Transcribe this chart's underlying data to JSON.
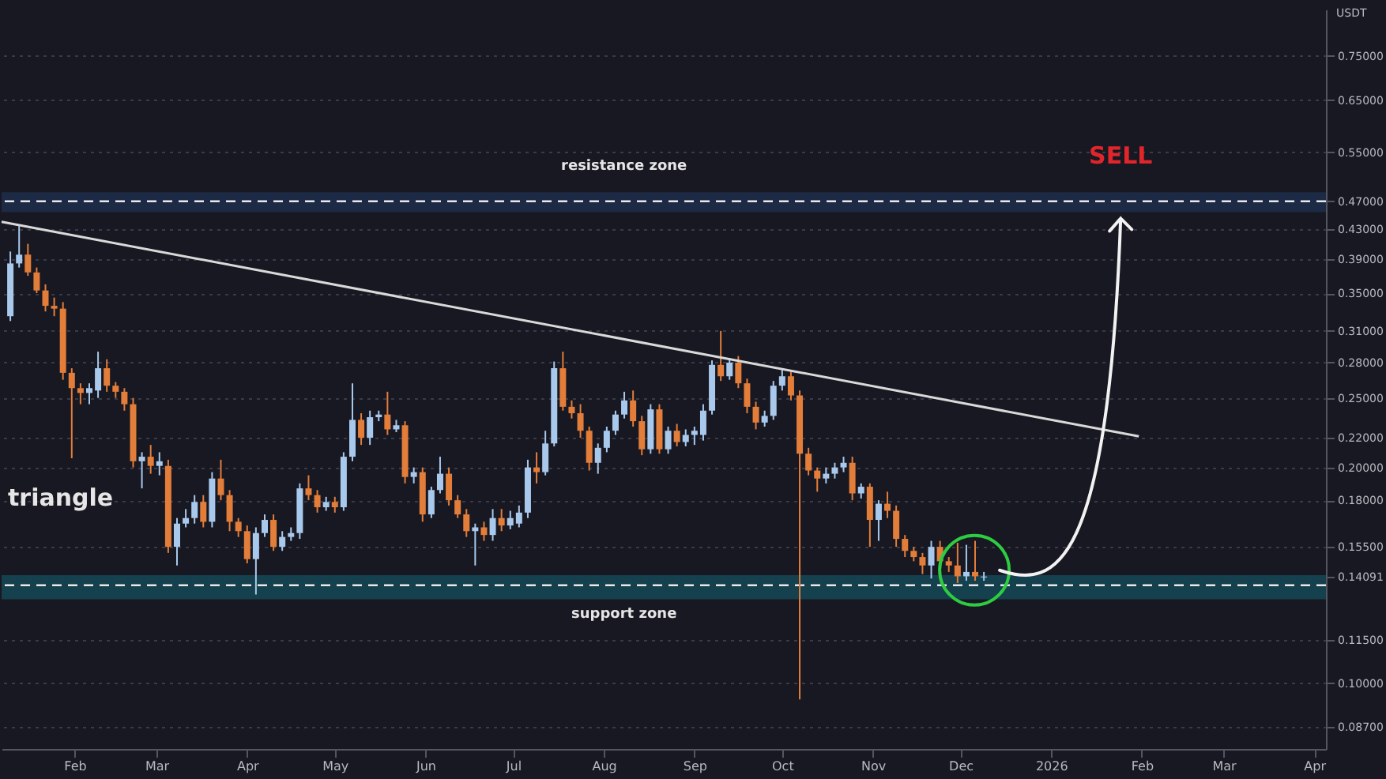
{
  "chart_data": {
    "type": "candlestick",
    "ylabel": "USDT",
    "log": "y",
    "grid": "y",
    "xlim": [
      "2025-01-07",
      "2026-04-05"
    ],
    "xticks": [
      {
        "value": "2025-02-01",
        "label": "Feb"
      },
      {
        "value": "2025-03-01",
        "label": "Mar"
      },
      {
        "value": "2025-04-01",
        "label": "Apr"
      },
      {
        "value": "2025-05-01",
        "label": "May"
      },
      {
        "value": "2025-06-01",
        "label": "Jun"
      },
      {
        "value": "2025-07-01",
        "label": "Jul"
      },
      {
        "value": "2025-08-01",
        "label": "Aug"
      },
      {
        "value": "2025-09-01",
        "label": "Sep"
      },
      {
        "value": "2025-10-01",
        "label": "Oct"
      },
      {
        "value": "2025-11-01",
        "label": "Nov"
      },
      {
        "value": "2025-12-01",
        "label": "Dec"
      },
      {
        "value": "2026-01-01",
        "label": "2026"
      },
      {
        "value": "2026-02-01",
        "label": "Feb"
      },
      {
        "value": "2026-03-01",
        "label": "Mar"
      },
      {
        "value": "2026-04-01",
        "label": "Apr"
      }
    ],
    "ylim": [
      0.081,
      0.87
    ],
    "yticks": [
      {
        "value": 0.75,
        "label": "0.75000"
      },
      {
        "value": 0.65,
        "label": "0.65000"
      },
      {
        "value": 0.55,
        "label": "0.55000"
      },
      {
        "value": 0.47,
        "label": "0.47000"
      },
      {
        "value": 0.43,
        "label": "0.43000"
      },
      {
        "value": 0.39,
        "label": "0.39000"
      },
      {
        "value": 0.35,
        "label": "0.35000"
      },
      {
        "value": 0.31,
        "label": "0.31000"
      },
      {
        "value": 0.28,
        "label": "0.28000"
      },
      {
        "value": 0.25,
        "label": "0.25000"
      },
      {
        "value": 0.22,
        "label": "0.22000"
      },
      {
        "value": 0.2,
        "label": "0.20000"
      },
      {
        "value": 0.18,
        "label": "0.18000"
      },
      {
        "value": 0.155,
        "label": "0.15500"
      },
      {
        "value": 0.14091,
        "label": "0.14091"
      },
      {
        "value": 0.115,
        "label": "0.11500"
      },
      {
        "value": 0.1,
        "label": "0.10000"
      },
      {
        "value": 0.087,
        "label": "0.08700"
      }
    ],
    "x": [
      "2025-01-10",
      "2025-01-13",
      "2025-01-16",
      "2025-01-19",
      "2025-01-22",
      "2025-01-25",
      "2025-01-28",
      "2025-01-31",
      "2025-02-03",
      "2025-02-06",
      "2025-02-09",
      "2025-02-12",
      "2025-02-15",
      "2025-02-18",
      "2025-02-21",
      "2025-02-24",
      "2025-02-27",
      "2025-03-02",
      "2025-03-05",
      "2025-03-08",
      "2025-03-11",
      "2025-03-14",
      "2025-03-17",
      "2025-03-20",
      "2025-03-23",
      "2025-03-26",
      "2025-03-29",
      "2025-04-01",
      "2025-04-04",
      "2025-04-07",
      "2025-04-10",
      "2025-04-13",
      "2025-04-16",
      "2025-04-19",
      "2025-04-22",
      "2025-04-25",
      "2025-04-28",
      "2025-05-01",
      "2025-05-04",
      "2025-05-07",
      "2025-05-10",
      "2025-05-13",
      "2025-05-16",
      "2025-05-19",
      "2025-05-22",
      "2025-05-25",
      "2025-05-28",
      "2025-05-31",
      "2025-06-03",
      "2025-06-06",
      "2025-06-09",
      "2025-06-12",
      "2025-06-15",
      "2025-06-18",
      "2025-06-21",
      "2025-06-24",
      "2025-06-27",
      "2025-06-30",
      "2025-07-03",
      "2025-07-06",
      "2025-07-09",
      "2025-07-12",
      "2025-07-15",
      "2025-07-18",
      "2025-07-21",
      "2025-07-24",
      "2025-07-27",
      "2025-07-30",
      "2025-08-02",
      "2025-08-05",
      "2025-08-08",
      "2025-08-11",
      "2025-08-14",
      "2025-08-17",
      "2025-08-20",
      "2025-08-23",
      "2025-08-26",
      "2025-08-29",
      "2025-09-01",
      "2025-09-04",
      "2025-09-07",
      "2025-09-10",
      "2025-09-13",
      "2025-09-16",
      "2025-09-19",
      "2025-09-22",
      "2025-09-25",
      "2025-09-28",
      "2025-10-01",
      "2025-10-04",
      "2025-10-07",
      "2025-10-10",
      "2025-10-13",
      "2025-10-16",
      "2025-10-19",
      "2025-10-22",
      "2025-10-25",
      "2025-10-28",
      "2025-10-31",
      "2025-11-03",
      "2025-11-06",
      "2025-11-09",
      "2025-11-12",
      "2025-11-15",
      "2025-11-18",
      "2025-11-21",
      "2025-11-24",
      "2025-11-27",
      "2025-11-30",
      "2025-12-03",
      "2025-12-06",
      "2025-12-09"
    ],
    "ohlc": [
      [
        0.325,
        0.4,
        0.32,
        0.385
      ],
      [
        0.385,
        0.434,
        0.38,
        0.396
      ],
      [
        0.396,
        0.41,
        0.37,
        0.374
      ],
      [
        0.374,
        0.38,
        0.35,
        0.353
      ],
      [
        0.353,
        0.36,
        0.33,
        0.336
      ],
      [
        0.336,
        0.345,
        0.325,
        0.333
      ],
      [
        0.333,
        0.34,
        0.265,
        0.271
      ],
      [
        0.271,
        0.275,
        0.206,
        0.258
      ],
      [
        0.258,
        0.262,
        0.245,
        0.254
      ],
      [
        0.254,
        0.262,
        0.245,
        0.258
      ],
      [
        0.256,
        0.29,
        0.25,
        0.275
      ],
      [
        0.275,
        0.283,
        0.255,
        0.26
      ],
      [
        0.26,
        0.263,
        0.25,
        0.255
      ],
      [
        0.255,
        0.258,
        0.24,
        0.245
      ],
      [
        0.245,
        0.25,
        0.2,
        0.204
      ],
      [
        0.204,
        0.21,
        0.187,
        0.207
      ],
      [
        0.207,
        0.215,
        0.196,
        0.201
      ],
      [
        0.201,
        0.21,
        0.195,
        0.204
      ],
      [
        0.201,
        0.205,
        0.152,
        0.155
      ],
      [
        0.155,
        0.17,
        0.146,
        0.167
      ],
      [
        0.167,
        0.175,
        0.165,
        0.17
      ],
      [
        0.17,
        0.183,
        0.167,
        0.179
      ],
      [
        0.179,
        0.183,
        0.165,
        0.168
      ],
      [
        0.168,
        0.197,
        0.165,
        0.193
      ],
      [
        0.193,
        0.205,
        0.18,
        0.183
      ],
      [
        0.183,
        0.186,
        0.163,
        0.168
      ],
      [
        0.168,
        0.17,
        0.16,
        0.163
      ],
      [
        0.163,
        0.166,
        0.147,
        0.149
      ],
      [
        0.149,
        0.165,
        0.133,
        0.162
      ],
      [
        0.162,
        0.172,
        0.16,
        0.169
      ],
      [
        0.169,
        0.172,
        0.153,
        0.155
      ],
      [
        0.155,
        0.163,
        0.153,
        0.16
      ],
      [
        0.16,
        0.165,
        0.158,
        0.162
      ],
      [
        0.162,
        0.19,
        0.159,
        0.187
      ],
      [
        0.187,
        0.195,
        0.18,
        0.183
      ],
      [
        0.183,
        0.186,
        0.173,
        0.176
      ],
      [
        0.176,
        0.182,
        0.174,
        0.179
      ],
      [
        0.179,
        0.182,
        0.173,
        0.176
      ],
      [
        0.176,
        0.21,
        0.174,
        0.207
      ],
      [
        0.207,
        0.262,
        0.204,
        0.233
      ],
      [
        0.233,
        0.238,
        0.215,
        0.22
      ],
      [
        0.22,
        0.24,
        0.215,
        0.235
      ],
      [
        0.235,
        0.24,
        0.232,
        0.237
      ],
      [
        0.237,
        0.255,
        0.222,
        0.226
      ],
      [
        0.226,
        0.233,
        0.224,
        0.229
      ],
      [
        0.229,
        0.232,
        0.19,
        0.194
      ],
      [
        0.194,
        0.2,
        0.19,
        0.197
      ],
      [
        0.197,
        0.2,
        0.168,
        0.172
      ],
      [
        0.172,
        0.188,
        0.17,
        0.186
      ],
      [
        0.186,
        0.207,
        0.184,
        0.196
      ],
      [
        0.196,
        0.2,
        0.177,
        0.18
      ],
      [
        0.18,
        0.183,
        0.17,
        0.172
      ],
      [
        0.172,
        0.175,
        0.16,
        0.163
      ],
      [
        0.163,
        0.167,
        0.146,
        0.165
      ],
      [
        0.165,
        0.168,
        0.158,
        0.161
      ],
      [
        0.161,
        0.175,
        0.158,
        0.17
      ],
      [
        0.17,
        0.175,
        0.163,
        0.166
      ],
      [
        0.166,
        0.174,
        0.164,
        0.17
      ],
      [
        0.167,
        0.177,
        0.165,
        0.173
      ],
      [
        0.173,
        0.205,
        0.17,
        0.2
      ],
      [
        0.2,
        0.21,
        0.19,
        0.197
      ],
      [
        0.197,
        0.225,
        0.195,
        0.216
      ],
      [
        0.216,
        0.281,
        0.214,
        0.275
      ],
      [
        0.275,
        0.29,
        0.24,
        0.243
      ],
      [
        0.243,
        0.248,
        0.234,
        0.238
      ],
      [
        0.238,
        0.245,
        0.22,
        0.225
      ],
      [
        0.225,
        0.228,
        0.198,
        0.203
      ],
      [
        0.203,
        0.216,
        0.196,
        0.213
      ],
      [
        0.213,
        0.228,
        0.21,
        0.225
      ],
      [
        0.225,
        0.24,
        0.222,
        0.237
      ],
      [
        0.237,
        0.255,
        0.234,
        0.248
      ],
      [
        0.248,
        0.256,
        0.228,
        0.232
      ],
      [
        0.232,
        0.236,
        0.208,
        0.212
      ],
      [
        0.212,
        0.245,
        0.209,
        0.241
      ],
      [
        0.241,
        0.245,
        0.209,
        0.212
      ],
      [
        0.212,
        0.228,
        0.209,
        0.225
      ],
      [
        0.225,
        0.23,
        0.214,
        0.217
      ],
      [
        0.217,
        0.226,
        0.214,
        0.222
      ],
      [
        0.222,
        0.228,
        0.215,
        0.225
      ],
      [
        0.222,
        0.245,
        0.218,
        0.24
      ],
      [
        0.24,
        0.282,
        0.237,
        0.278
      ],
      [
        0.278,
        0.31,
        0.264,
        0.268
      ],
      [
        0.268,
        0.284,
        0.265,
        0.28
      ],
      [
        0.28,
        0.286,
        0.258,
        0.262
      ],
      [
        0.262,
        0.266,
        0.238,
        0.243
      ],
      [
        0.243,
        0.247,
        0.226,
        0.231
      ],
      [
        0.231,
        0.24,
        0.228,
        0.236
      ],
      [
        0.236,
        0.264,
        0.233,
        0.26
      ],
      [
        0.26,
        0.275,
        0.256,
        0.268
      ],
      [
        0.268,
        0.272,
        0.248,
        0.252
      ],
      [
        0.252,
        0.256,
        0.095,
        0.209
      ],
      [
        0.209,
        0.213,
        0.195,
        0.198
      ],
      [
        0.198,
        0.2,
        0.185,
        0.193
      ],
      [
        0.193,
        0.2,
        0.19,
        0.196
      ],
      [
        0.196,
        0.203,
        0.193,
        0.2
      ],
      [
        0.2,
        0.207,
        0.197,
        0.203
      ],
      [
        0.203,
        0.207,
        0.18,
        0.184
      ],
      [
        0.184,
        0.19,
        0.181,
        0.188
      ],
      [
        0.188,
        0.19,
        0.155,
        0.169
      ],
      [
        0.169,
        0.18,
        0.158,
        0.178
      ],
      [
        0.178,
        0.185,
        0.17,
        0.174
      ],
      [
        0.174,
        0.177,
        0.155,
        0.159
      ],
      [
        0.159,
        0.161,
        0.15,
        0.153
      ],
      [
        0.153,
        0.155,
        0.148,
        0.15
      ],
      [
        0.15,
        0.152,
        0.142,
        0.146
      ],
      [
        0.146,
        0.158,
        0.14,
        0.155
      ],
      [
        0.155,
        0.158,
        0.146,
        0.148
      ],
      [
        0.148,
        0.15,
        0.143,
        0.146
      ],
      [
        0.146,
        0.157,
        0.138,
        0.141
      ],
      [
        0.141,
        0.156,
        0.139,
        0.143
      ],
      [
        0.143,
        0.158,
        0.139,
        0.141
      ],
      [
        0.1405,
        0.143,
        0.139,
        0.1409
      ]
    ],
    "series": [
      {
        "type": "line",
        "color": "#d9d9d9",
        "x": [
          "2025-01-07",
          "2026-01-31"
        ],
        "values": [
          0.44,
          0.221
        ]
      }
    ],
    "bands": [
      {
        "axis": "y",
        "from": 0.454,
        "to": 0.484,
        "color": "#1d2a45"
      },
      {
        "axis": "y",
        "from": 0.131,
        "to": 0.1415,
        "color": "#15404e"
      }
    ],
    "ref_lines": [
      {
        "axis": "y",
        "value": 0.47,
        "color": "#e8e8e8",
        "line_style": "dashed"
      },
      {
        "axis": "y",
        "value": 0.137,
        "color": "#e8e8e8",
        "line_style": "dashed"
      }
    ],
    "annotations": [
      "resistance zone",
      "support zone",
      "SELL",
      "triangle"
    ]
  }
}
